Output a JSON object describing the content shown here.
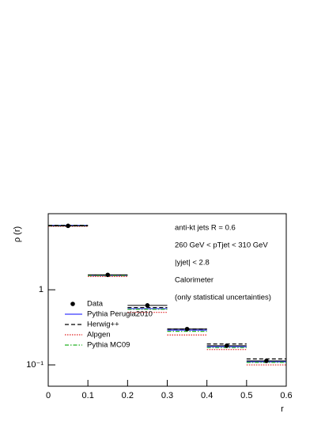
{
  "chart_data": {
    "type": "histogram",
    "x_label": "r",
    "y_label": "ρ (r)",
    "bins": [
      0,
      0.1,
      0.2,
      0.3,
      0.4,
      0.5,
      0.6
    ],
    "xlim": [
      0,
      0.6
    ],
    "xticks": [
      0,
      0.1,
      0.2,
      0.3,
      0.4,
      0.5,
      0.6
    ],
    "ylim": [
      0.052,
      10.3
    ],
    "log_y": true,
    "yticks": [
      {
        "value": 1,
        "label": "1"
      },
      {
        "value": 0.1,
        "label": "10⁻¹"
      }
    ],
    "data": {
      "name": "Data",
      "color": "#000000",
      "x": [
        0.05,
        0.15,
        0.25,
        0.35,
        0.45,
        0.55
      ],
      "values": [
        7.1,
        1.58,
        0.62,
        0.3,
        0.18,
        0.113
      ]
    },
    "series": [
      {
        "name": "Pythia Perugia2010",
        "color": "#3b3bff",
        "dash": "solid",
        "values": [
          7.2,
          1.55,
          0.56,
          0.29,
          0.175,
          0.11
        ]
      },
      {
        "name": "Herwig++",
        "color": "#000000",
        "dash": "dashed",
        "values": [
          7.2,
          1.57,
          0.58,
          0.3,
          0.19,
          0.12
        ]
      },
      {
        "name": "Alpgen",
        "color": "#e02020",
        "dash": "dotted",
        "values": [
          7.0,
          1.5,
          0.5,
          0.25,
          0.16,
          0.1
        ]
      },
      {
        "name": "Pythia MC09",
        "color": "#20b020",
        "dash": "dashdot",
        "values": [
          7.1,
          1.55,
          0.55,
          0.28,
          0.17,
          0.108
        ]
      }
    ],
    "annotations": [
      "anti-kt jets R = 0.6",
      "260 GeV < pTjet < 310 GeV",
      "|yjet| < 2.8",
      "Calorimeter",
      "(only statistical uncertainties)"
    ],
    "legend": "lower-left"
  }
}
